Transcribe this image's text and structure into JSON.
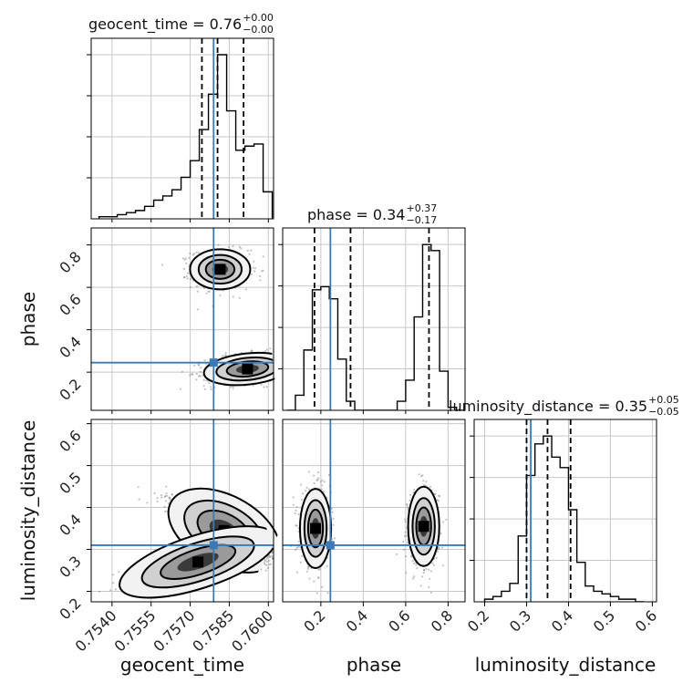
{
  "chart_data": {
    "type": "corner",
    "parameters": [
      "geocent_time",
      "phase",
      "luminosity_distance"
    ],
    "titles": [
      {
        "param": "geocent_time",
        "text": "geocent_time = 0.76",
        "plus": "+0.00",
        "minus": "−0.00"
      },
      {
        "param": "phase",
        "text": "phase = 0.34",
        "plus": "+0.37",
        "minus": "−0.17"
      },
      {
        "param": "luminosity_distance",
        "text": "luminosity_distance = 0.35",
        "plus": "+0.05",
        "minus": "−0.05"
      }
    ],
    "axis_labels": {
      "x": [
        "geocent_time",
        "phase",
        "luminosity_distance"
      ],
      "y": [
        "phase",
        "luminosity_distance"
      ]
    },
    "ranges": {
      "geocent_time": [
        0.7532,
        0.7602
      ],
      "phase": [
        0.02,
        0.88
      ],
      "luminosity_distance": [
        0.175,
        0.61
      ]
    },
    "ticks": {
      "geocent_time": [
        "0.7540",
        "0.7555",
        "0.7570",
        "0.7585",
        "0.7600"
      ],
      "phase": [
        "0.2",
        "0.4",
        "0.6",
        "0.8"
      ],
      "phase_y": [
        "0.2",
        "0.4",
        "0.6",
        "0.8"
      ],
      "luminosity_distance": [
        "0.2",
        "0.3",
        "0.4",
        "0.5",
        "0.6"
      ]
    },
    "truth": {
      "geocent_time": 0.7579,
      "phase": 0.245,
      "luminosity_distance": 0.31
    },
    "quantiles": {
      "geocent_time": [
        0.75745,
        0.75805,
        0.75905
      ],
      "phase": [
        0.17,
        0.34,
        0.71
      ],
      "luminosity_distance": [
        0.3,
        0.35,
        0.405
      ]
    },
    "histograms": {
      "geocent_time": {
        "edges": [
          0.7535,
          0.75385,
          0.7542,
          0.75455,
          0.7549,
          0.75525,
          0.7556,
          0.75595,
          0.7563,
          0.75665,
          0.757,
          0.75735,
          0.7577,
          0.75805,
          0.7584,
          0.75875,
          0.7591,
          0.75945,
          0.7598,
          0.76015
        ],
        "counts": [
          1,
          1,
          2,
          3,
          4,
          6,
          9,
          11,
          14,
          20,
          28,
          43,
          60,
          79,
          52,
          33,
          35,
          36,
          13
        ]
      },
      "phase": {
        "bins": [
          0.04,
          0.08,
          0.12,
          0.16,
          0.2,
          0.24,
          0.28,
          0.32,
          0.36,
          0.4,
          0.44,
          0.48,
          0.52,
          0.56,
          0.6,
          0.64,
          0.68,
          0.72,
          0.76,
          0.8,
          0.84,
          0.88
        ],
        "counts": [
          0,
          5,
          20,
          40,
          41,
          37,
          17,
          3,
          0,
          0,
          0,
          0,
          0,
          3,
          10,
          31,
          55,
          53,
          13,
          1,
          0
        ]
      },
      "luminosity_distance": {
        "bins": [
          0.2,
          0.22,
          0.24,
          0.26,
          0.28,
          0.3,
          0.32,
          0.34,
          0.36,
          0.38,
          0.4,
          0.42,
          0.44,
          0.46,
          0.48,
          0.5,
          0.52,
          0.54,
          0.56,
          0.58
        ],
        "counts": [
          1,
          2,
          4,
          7,
          25,
          48,
          60,
          63,
          55,
          51,
          35,
          15,
          6,
          4,
          3,
          2,
          1,
          1,
          0
        ]
      }
    },
    "colors": {
      "truth": "#3a7ab8",
      "contour": "#000000",
      "points": "#555555",
      "grid": "#c8c8c8"
    },
    "grid": true
  }
}
